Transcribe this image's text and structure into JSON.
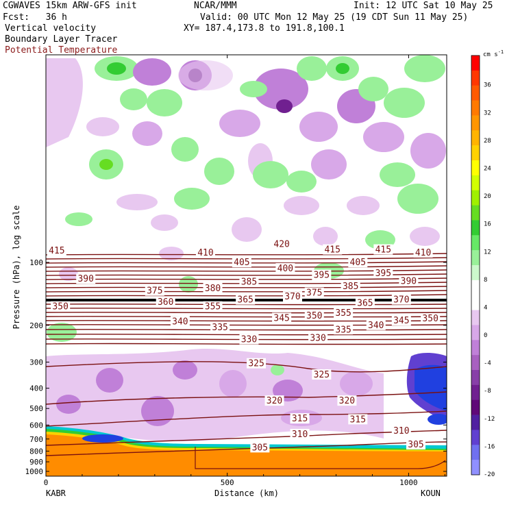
{
  "header": {
    "model": "CGWAVES 15km ARW-GFS init",
    "forecast": "Fcst:   36 h",
    "org": "NCAR/MMM",
    "init": "Init: 12 UTC Sat 10 May 25",
    "valid": "Valid: 00 UTC Mon 12 May 25 (19 CDT Sun 11 May 25)",
    "xy": "XY= 187.4,173.8 to 191.8,100.1",
    "field1": "Vertical velocity",
    "field2": "Boundary Layer Tracer",
    "field3": "Potential Temperature"
  },
  "colors": {
    "theta_contour": "#7a1010",
    "tracer": "#ff8c00",
    "field3_text": "#8b1a1a"
  },
  "chart_data": {
    "type": "heatmap",
    "xlabel": "Distance (km)",
    "ylabel": "Pressure (hPa), log scale",
    "x_ticks": [
      0,
      500,
      1000
    ],
    "x_range": [
      0,
      1105
    ],
    "y_ticks": [
      100,
      200,
      300,
      400,
      500,
      600,
      700,
      800,
      900,
      1000
    ],
    "y_scale": "log",
    "left_station": "KABR",
    "right_station": "KOUN",
    "colorbar": {
      "unit": "cm s",
      "unit_exp": "-1",
      "labels": [
        36,
        32,
        28,
        24,
        20,
        16,
        12,
        8,
        4,
        0,
        -4,
        -8,
        -12,
        -16,
        -20
      ],
      "colors": [
        "#ff0000",
        "#ff3800",
        "#ff5a00",
        "#ff7a00",
        "#ff9600",
        "#ffb400",
        "#ffd200",
        "#ffff00",
        "#d2ff00",
        "#a0f000",
        "#66dd22",
        "#33cc33",
        "#66e866",
        "#99f099",
        "#ccf8cc",
        "#ffffff",
        "#ffffff",
        "#e8c8f0",
        "#d8a8e8",
        "#c080d8",
        "#a860c0",
        "#8840a8",
        "#702090",
        "#600878",
        "#5020a0",
        "#6040d0",
        "#7070f0",
        "#9090ff"
      ]
    },
    "theta_labels": [
      {
        "v": "415",
        "x": 30,
        "p": 88
      },
      {
        "v": "410",
        "x": 440,
        "p": 90
      },
      {
        "v": "420",
        "x": 650,
        "p": 82
      },
      {
        "v": "415",
        "x": 790,
        "p": 87
      },
      {
        "v": "415",
        "x": 930,
        "p": 87
      },
      {
        "v": "410",
        "x": 1040,
        "p": 90
      },
      {
        "v": "405",
        "x": 540,
        "p": 100
      },
      {
        "v": "405",
        "x": 860,
        "p": 100
      },
      {
        "v": "400",
        "x": 660,
        "p": 107
      },
      {
        "v": "390",
        "x": 110,
        "p": 120
      },
      {
        "v": "395",
        "x": 760,
        "p": 115
      },
      {
        "v": "395",
        "x": 930,
        "p": 113
      },
      {
        "v": "390",
        "x": 1000,
        "p": 123
      },
      {
        "v": "385",
        "x": 560,
        "p": 124
      },
      {
        "v": "385",
        "x": 840,
        "p": 130
      },
      {
        "v": "375",
        "x": 300,
        "p": 137
      },
      {
        "v": "380",
        "x": 460,
        "p": 133
      },
      {
        "v": "375",
        "x": 740,
        "p": 140
      },
      {
        "v": "370",
        "x": 680,
        "p": 146
      },
      {
        "v": "370",
        "x": 980,
        "p": 151
      },
      {
        "v": "365",
        "x": 550,
        "p": 151
      },
      {
        "v": "365",
        "x": 880,
        "p": 157
      },
      {
        "v": "360",
        "x": 330,
        "p": 155
      },
      {
        "v": "350",
        "x": 40,
        "p": 163
      },
      {
        "v": "355",
        "x": 460,
        "p": 163
      },
      {
        "v": "355",
        "x": 820,
        "p": 175
      },
      {
        "v": "350",
        "x": 740,
        "p": 180
      },
      {
        "v": "350",
        "x": 1060,
        "p": 186
      },
      {
        "v": "345",
        "x": 650,
        "p": 185
      },
      {
        "v": "345",
        "x": 980,
        "p": 190
      },
      {
        "v": "340",
        "x": 370,
        "p": 192
      },
      {
        "v": "340",
        "x": 910,
        "p": 200
      },
      {
        "v": "335",
        "x": 480,
        "p": 205
      },
      {
        "v": "335",
        "x": 820,
        "p": 210
      },
      {
        "v": "330",
        "x": 560,
        "p": 234
      },
      {
        "v": "330",
        "x": 750,
        "p": 230
      },
      {
        "v": "325",
        "x": 580,
        "p": 305
      },
      {
        "v": "325",
        "x": 760,
        "p": 345
      },
      {
        "v": "320",
        "x": 630,
        "p": 460
      },
      {
        "v": "320",
        "x": 830,
        "p": 460
      },
      {
        "v": "315",
        "x": 700,
        "p": 560
      },
      {
        "v": "315",
        "x": 860,
        "p": 565
      },
      {
        "v": "310",
        "x": 700,
        "p": 665
      },
      {
        "v": "310",
        "x": 980,
        "p": 640
      },
      {
        "v": "305",
        "x": 590,
        "p": 770
      },
      {
        "v": "305",
        "x": 1020,
        "p": 745
      }
    ]
  }
}
